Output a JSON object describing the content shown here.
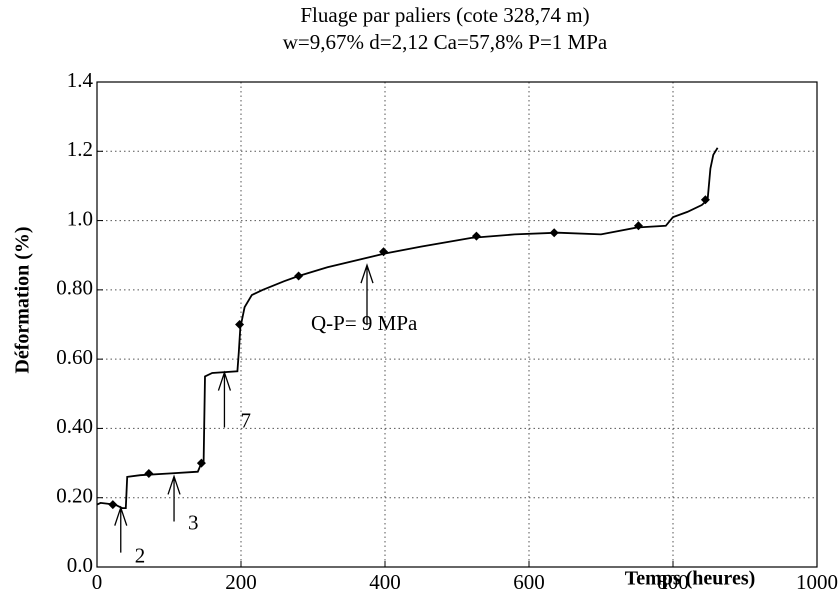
{
  "chart_data": {
    "type": "line",
    "title": "Fluage par paliers (cote 328,74 m)",
    "subtitle": "w=9,67% d=2,12 Ca=57,8% P=1 MPa",
    "x_label": "Temps  (heures)",
    "y_label": "Déformation  (%)",
    "x": [
      0,
      5,
      25,
      35,
      40,
      42,
      60,
      100,
      140,
      145,
      148,
      150,
      160,
      195,
      197,
      199,
      205,
      215,
      230,
      260,
      280,
      320,
      360,
      400,
      450,
      520,
      580,
      640,
      700,
      750,
      790,
      800,
      820,
      840,
      848,
      852,
      856,
      862
    ],
    "values": [
      0.18,
      0.185,
      0.18,
      0.17,
      0.17,
      0.26,
      0.265,
      0.27,
      0.275,
      0.3,
      0.3,
      0.55,
      0.56,
      0.565,
      0.62,
      0.69,
      0.75,
      0.785,
      0.8,
      0.825,
      0.84,
      0.865,
      0.885,
      0.905,
      0.925,
      0.95,
      0.96,
      0.965,
      0.96,
      0.98,
      0.985,
      1.01,
      1.025,
      1.045,
      1.06,
      1.15,
      1.19,
      1.21
    ],
    "markers": {
      "x": [
        22,
        72,
        145,
        198,
        280,
        398,
        527,
        635,
        752,
        845
      ],
      "values": [
        0.18,
        0.27,
        0.3,
        0.7,
        0.84,
        0.91,
        0.955,
        0.965,
        0.985,
        1.06
      ]
    },
    "color": "#000000",
    "annotations": [
      {
        "text": "2",
        "x": 33,
        "y": 0.18
      },
      {
        "text": "3",
        "x": 107,
        "y": 0.27
      },
      {
        "text": "7",
        "x": 177,
        "y": 0.57
      },
      {
        "text": "Q-P= 9 MPa",
        "x": 375,
        "y": 0.88
      }
    ],
    "xlim": [
      0,
      1000
    ],
    "ylim": [
      0,
      1.4
    ],
    "xticks": [
      0,
      200,
      400,
      600,
      800,
      1000
    ],
    "yticks": [
      {
        "value": 0,
        "label": "0.0"
      },
      {
        "value": 0.2,
        "label": "0.20"
      },
      {
        "value": 0.4,
        "label": "0.40"
      },
      {
        "value": 0.6,
        "label": "0.60"
      },
      {
        "value": 0.8,
        "label": "0.80"
      },
      {
        "value": 1.0,
        "label": "1.0"
      },
      1.2,
      1.4
    ],
    "grid": true
  }
}
